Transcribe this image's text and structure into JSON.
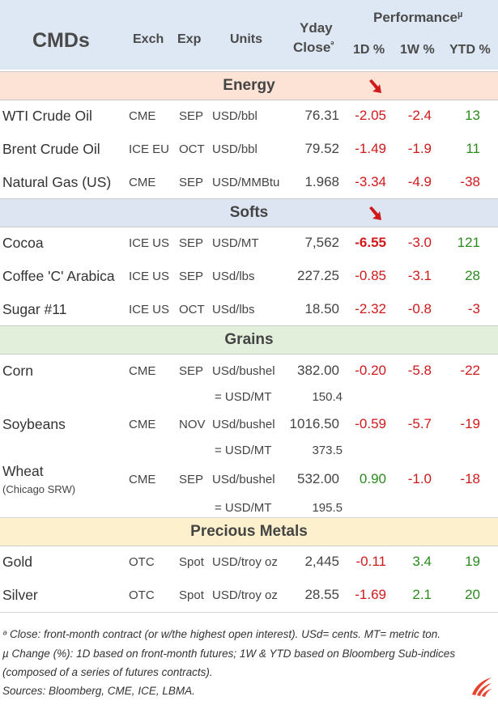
{
  "header": {
    "title": "CMDs",
    "exch": "Exch",
    "exp": "Exp",
    "units": "Units",
    "yday1": "Yday",
    "yday2": "Close",
    "yday_mark": "ᵊ",
    "performance": "Performance",
    "performance_mark": "µ",
    "d1": "1D %",
    "w1": "1W %",
    "ytd": "YTD %"
  },
  "colors": {
    "header_bg": "#dde8f4",
    "energy_bg": "#fde3d6",
    "softs_bg": "#dde4f2",
    "grains_bg": "#e2efda",
    "metals_bg": "#fdf0cd",
    "negative": "#d0191b",
    "positive": "#2a8a1e"
  },
  "sections": [
    {
      "title": "Energy",
      "rows": [
        {
          "name": "WTI Crude Oil",
          "exch": "CME",
          "exp": "SEP",
          "units": "USD/bbl",
          "close": "76.31",
          "d1": "-2.05",
          "w1": "-2.4",
          "ytd": "13"
        },
        {
          "name": "Brent Crude Oil",
          "exch": "ICE EU",
          "exp": "OCT",
          "units": "USD/bbl",
          "close": "79.52",
          "d1": "-1.49",
          "w1": "-1.9",
          "ytd": "11"
        },
        {
          "name": "Natural Gas (US)",
          "exch": "CME",
          "exp": "SEP",
          "units": "USD/MMBtu",
          "close": "1.968",
          "d1": "-3.34",
          "w1": "-4.9",
          "ytd": "-38"
        }
      ]
    },
    {
      "title": "Softs",
      "rows": [
        {
          "name": "Cocoa",
          "exch": "ICE US",
          "exp": "SEP",
          "units": "USD/MT",
          "close": "7,562",
          "d1": "-6.55",
          "w1": "-3.0",
          "ytd": "121"
        },
        {
          "name": "Coffee 'C' Arabica",
          "exch": "ICE US",
          "exp": "SEP",
          "units": "USd/lbs",
          "close": "227.25",
          "d1": "-0.85",
          "w1": "-3.1",
          "ytd": "28"
        },
        {
          "name": "Sugar #11",
          "exch": "ICE US",
          "exp": "OCT",
          "units": "USd/lbs",
          "close": "18.50",
          "d1": "-2.32",
          "w1": "-0.8",
          "ytd": "-3"
        }
      ]
    },
    {
      "title": "Grains",
      "rows": [
        {
          "name": "Corn",
          "exch": "CME",
          "exp": "SEP",
          "units": "USd/bushel",
          "close": "382.00",
          "d1": "-0.20",
          "w1": "-5.8",
          "ytd": "-22",
          "conv_label": "= USD/MT",
          "conv_value": "150.4"
        },
        {
          "name": "Soybeans",
          "exch": "CME",
          "exp": "NOV",
          "units": "USd/bushel",
          "close": "1016.50",
          "d1": "-0.59",
          "w1": "-5.7",
          "ytd": "-19",
          "conv_label": "= USD/MT",
          "conv_value": "373.5"
        },
        {
          "name": "Wheat",
          "sub": "(Chicago SRW)",
          "exch": "CME",
          "exp": "SEP",
          "units": "USd/bushel",
          "close": "532.00",
          "d1": "0.90",
          "w1": "-1.0",
          "ytd": "-18",
          "conv_label": "= USD/MT",
          "conv_value": "195.5"
        }
      ]
    },
    {
      "title": "Precious Metals",
      "rows": [
        {
          "name": "Gold",
          "exch": "OTC",
          "exp": "Spot",
          "units": "USD/troy oz",
          "close": "2,445",
          "d1": "-0.11",
          "w1": "3.4",
          "ytd": "19"
        },
        {
          "name": "Silver",
          "exch": "OTC",
          "exp": "Spot",
          "units": "USD/troy oz",
          "close": "28.55",
          "d1": "-1.69",
          "w1": "2.1",
          "ytd": "20"
        }
      ]
    }
  ],
  "footnotes": {
    "line1": "ᵊ Close: front-month contract (or w/the highest open interest). USd= cents. MT= metric ton.",
    "line2": "µ Change (%): 1D based on front-month futures; 1W & YTD based on Bloomberg Sub-indices",
    "line3": "(composed of a series of futures contracts).",
    "line4": "Sources: Bloomberg, CME, ICE, LBMA."
  },
  "icons": {
    "trend_arrow": "arrow-down-right-icon",
    "logo": "flame-stripes-logo"
  }
}
